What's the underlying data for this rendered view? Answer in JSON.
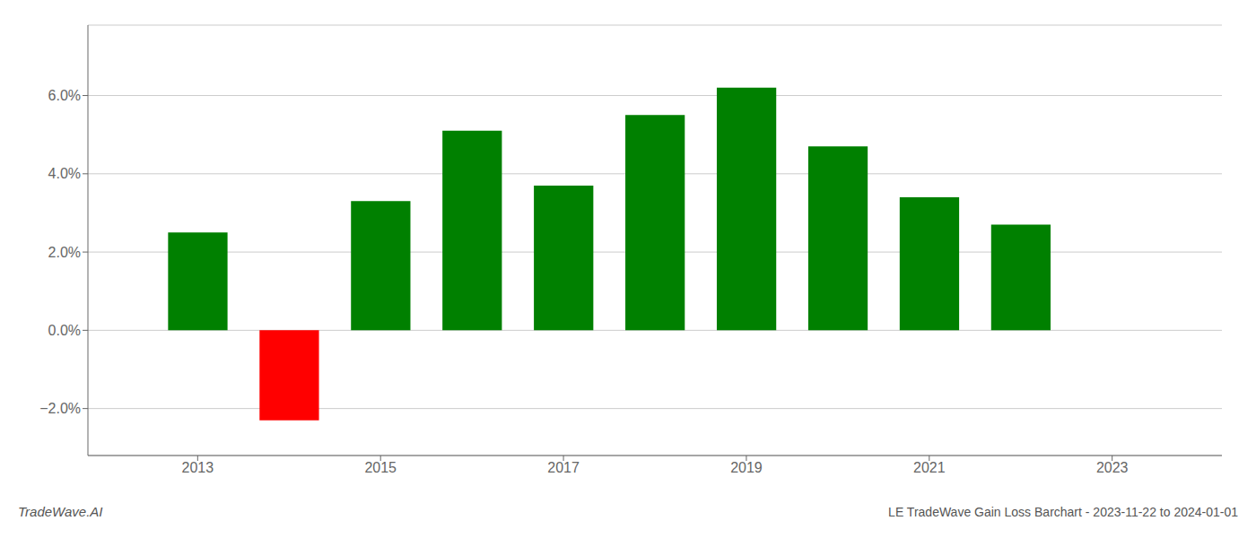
{
  "chart_data": {
    "type": "bar",
    "x": [
      2013,
      2014,
      2015,
      2016,
      2017,
      2018,
      2019,
      2020,
      2021,
      2022
    ],
    "values": [
      0.025,
      -0.023,
      0.033,
      0.051,
      0.037,
      0.055,
      0.062,
      0.047,
      0.034,
      0.027
    ],
    "colors": [
      "#008000",
      "#ff0000",
      "#008000",
      "#008000",
      "#008000",
      "#008000",
      "#008000",
      "#008000",
      "#008000",
      "#008000"
    ],
    "xlim": [
      2011.8,
      2024.2
    ],
    "xticks": [
      2013,
      2015,
      2017,
      2019,
      2021,
      2023
    ],
    "ylim": [
      -0.032,
      0.078
    ],
    "yticks": [
      {
        "value": -0.02,
        "label": "−2.0%"
      },
      {
        "value": 0.0,
        "label": "0.0%"
      },
      {
        "value": 0.02,
        "label": "2.0%"
      },
      {
        "value": 0.04,
        "label": "4.0%"
      },
      {
        "value": 0.06,
        "label": "6.0%"
      }
    ],
    "grid": true,
    "annotations": [
      "TradeWave.AI",
      "LE TradeWave Gain Loss Barchart - 2023-11-22 to 2024-01-01"
    ]
  }
}
